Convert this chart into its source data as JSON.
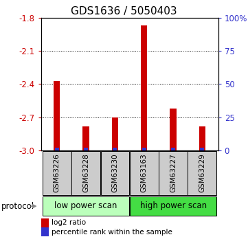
{
  "title": "GDS1636 / 5050403",
  "samples": [
    "GSM63226",
    "GSM63228",
    "GSM63230",
    "GSM63163",
    "GSM63227",
    "GSM63229"
  ],
  "log2_ratio": [
    -2.37,
    -2.78,
    -2.7,
    -1.87,
    -2.62,
    -2.78
  ],
  "percentile_rank": [
    2,
    2,
    2,
    2,
    2,
    2
  ],
  "ylim_left": [
    -3.0,
    -1.8
  ],
  "ylim_right": [
    0,
    100
  ],
  "left_yticks": [
    -3.0,
    -2.7,
    -2.4,
    -2.1,
    -1.8
  ],
  "right_yticks": [
    0,
    25,
    50,
    75,
    100
  ],
  "right_yticklabels": [
    "0",
    "25",
    "50",
    "75",
    "100%"
  ],
  "bar_color": "#cc0000",
  "percentile_color": "#3333cc",
  "protocol_groups": [
    {
      "label": "low power scan",
      "samples": [
        0,
        1,
        2
      ],
      "color": "#bbffbb"
    },
    {
      "label": "high power scan",
      "samples": [
        3,
        4,
        5
      ],
      "color": "#44dd44"
    }
  ],
  "legend_items": [
    {
      "label": "log2 ratio",
      "color": "#cc0000"
    },
    {
      "label": "percentile rank within the sample",
      "color": "#3333cc"
    }
  ],
  "background_color": "#ffffff",
  "plot_bg_color": "#ffffff",
  "sample_box_color": "#cccccc",
  "title_fontsize": 11,
  "tick_fontsize": 8.5,
  "sample_fontsize": 7.5,
  "protocol_fontsize": 8.5,
  "bar_width": 0.22
}
